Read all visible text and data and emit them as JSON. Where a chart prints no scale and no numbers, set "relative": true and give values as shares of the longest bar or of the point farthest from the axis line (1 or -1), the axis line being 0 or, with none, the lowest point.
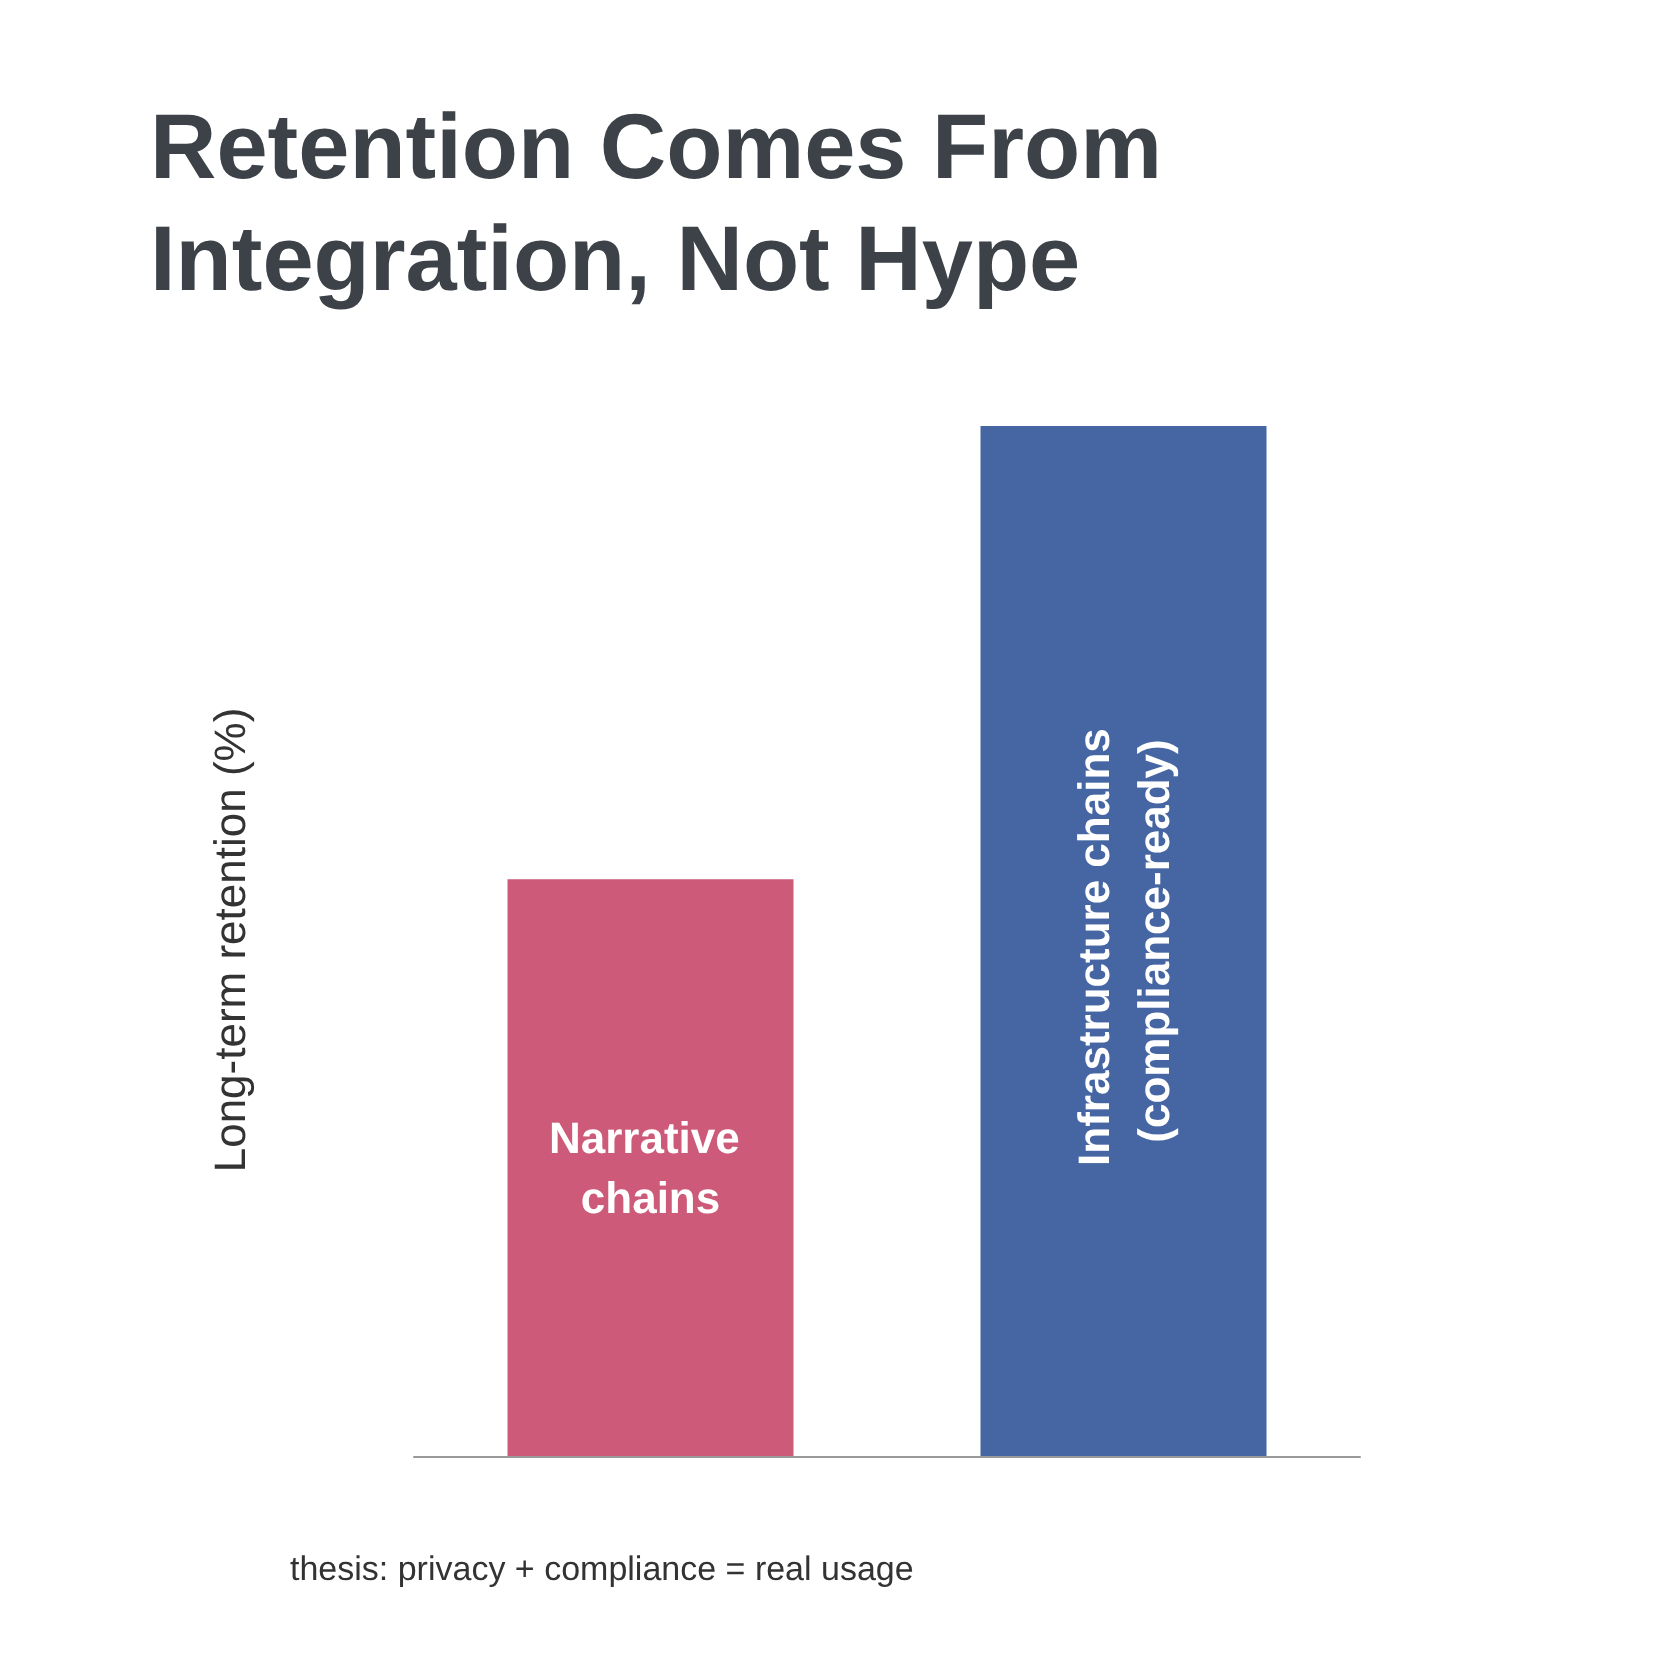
{
  "chart_data": {
    "type": "bar",
    "title": "Retention Comes From\nIntegration, Not Hype",
    "ylabel": "Long-term retention (%)",
    "relative": true,
    "categories": [
      "Narrative chains",
      "Infrastructure chains (compliance-ready)"
    ],
    "values": [
      0.56,
      1
    ],
    "colors": [
      "#cc5a78",
      "#4566a3"
    ],
    "annotations": [
      "thesis: privacy + compliance = real usage"
    ]
  }
}
